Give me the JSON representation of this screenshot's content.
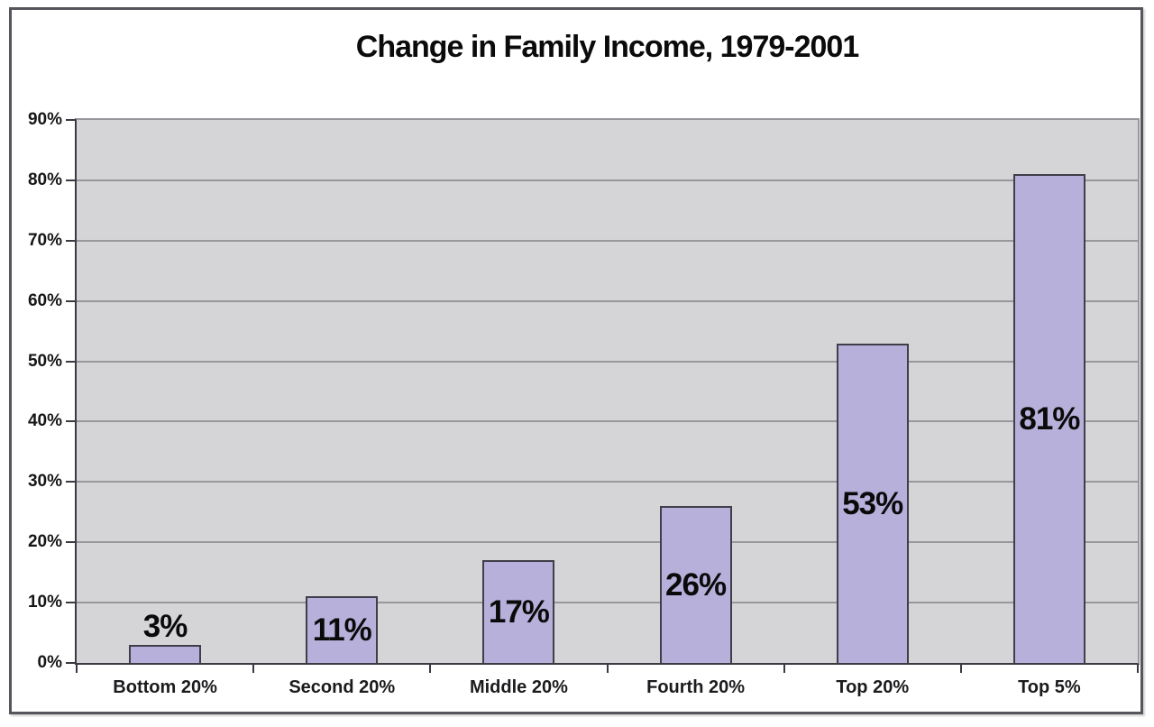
{
  "chart_data": {
    "type": "bar",
    "title": "Change in Family Income, 1979-2001",
    "categories": [
      "Bottom 20%",
      "Second 20%",
      "Middle 20%",
      "Fourth 20%",
      "Top 20%",
      "Top 5%"
    ],
    "values": [
      3,
      11,
      17,
      26,
      53,
      81
    ],
    "value_labels": [
      "3%",
      "11%",
      "17%",
      "26%",
      "53%",
      "81%"
    ],
    "xlabel": "",
    "ylabel": "",
    "ylim": [
      0,
      90
    ],
    "ytick_step": 10,
    "ytick_labels": [
      "0%",
      "10%",
      "20%",
      "30%",
      "40%",
      "50%",
      "60%",
      "70%",
      "80%",
      "90%"
    ],
    "grid": "horizontal",
    "legend": "none",
    "colors": {
      "bar_fill": "#b7b0da",
      "bar_border": "#3f3e49",
      "plot_bg": "#d5d4d6",
      "gridline": "#98979c",
      "axis": "#3a3a42",
      "frame_border": "#55555b",
      "background": "#ffffff",
      "text": "#0b0b0b"
    }
  }
}
